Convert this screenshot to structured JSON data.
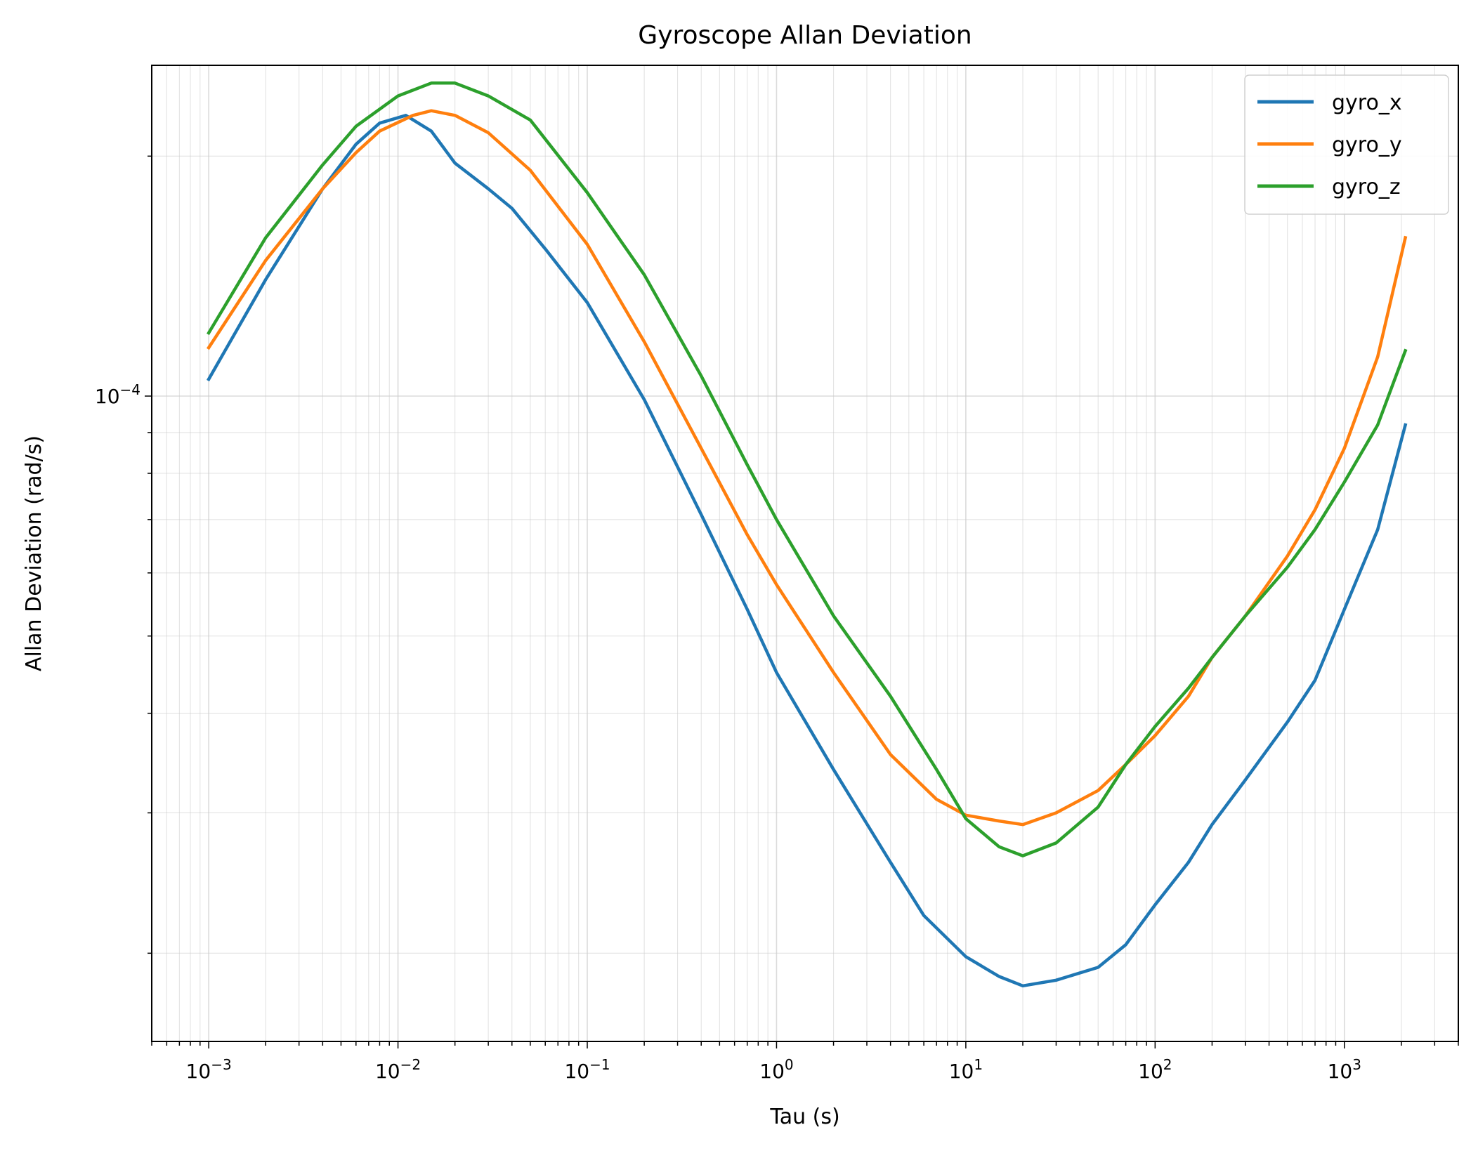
{
  "chart_data": {
    "type": "line",
    "title": "Gyroscope Allan Deviation",
    "xlabel": "Tau (s)",
    "ylabel": "Allan Deviation (rad/s)",
    "xscale": "log",
    "yscale": "log",
    "xlim": [
      0.0005,
      4000
    ],
    "ylim": [
      1.55e-05,
      0.00026
    ],
    "grid": "both",
    "legend_position": "top-right",
    "x_ticks": [
      {
        "value": 0.001,
        "base": "10",
        "exp": "−3"
      },
      {
        "value": 0.01,
        "base": "10",
        "exp": "−2"
      },
      {
        "value": 0.1,
        "base": "10",
        "exp": "−1"
      },
      {
        "value": 1,
        "base": "10",
        "exp": "0"
      },
      {
        "value": 10,
        "base": "10",
        "exp": "1"
      },
      {
        "value": 100,
        "base": "10",
        "exp": "2"
      },
      {
        "value": 1000,
        "base": "10",
        "exp": "3"
      }
    ],
    "y_ticks": [
      {
        "value": 0.0001,
        "base": "10",
        "exp": "−4"
      }
    ],
    "series": [
      {
        "name": "gyro_x",
        "color": "#1f77b4",
        "points": [
          [
            0.001,
            0.000105
          ],
          [
            0.002,
            0.00014
          ],
          [
            0.004,
            0.000182
          ],
          [
            0.006,
            0.000207
          ],
          [
            0.008,
            0.00022
          ],
          [
            0.011,
            0.000225
          ],
          [
            0.015,
            0.000215
          ],
          [
            0.02,
            0.000196
          ],
          [
            0.03,
            0.000182
          ],
          [
            0.04,
            0.000172
          ],
          [
            0.06,
            0.000153
          ],
          [
            0.1,
            0.000131
          ],
          [
            0.2,
            9.9e-05
          ],
          [
            0.4,
            7.1e-05
          ],
          [
            0.7,
            5.4e-05
          ],
          [
            1,
            4.5e-05
          ],
          [
            2,
            3.4e-05
          ],
          [
            4,
            2.6e-05
          ],
          [
            6,
            2.23e-05
          ],
          [
            10,
            1.98e-05
          ],
          [
            15,
            1.87e-05
          ],
          [
            20,
            1.82e-05
          ],
          [
            30,
            1.85e-05
          ],
          [
            50,
            1.92e-05
          ],
          [
            70,
            2.05e-05
          ],
          [
            100,
            2.3e-05
          ],
          [
            150,
            2.6e-05
          ],
          [
            200,
            2.9e-05
          ],
          [
            300,
            3.3e-05
          ],
          [
            500,
            3.9e-05
          ],
          [
            700,
            4.4e-05
          ],
          [
            1000,
            5.4e-05
          ],
          [
            1500,
            6.8e-05
          ],
          [
            2100,
            9.2e-05
          ]
        ]
      },
      {
        "name": "gyro_y",
        "color": "#ff7f0e",
        "points": [
          [
            0.001,
            0.000115
          ],
          [
            0.002,
            0.000148
          ],
          [
            0.004,
            0.000182
          ],
          [
            0.006,
            0.000202
          ],
          [
            0.008,
            0.000215
          ],
          [
            0.012,
            0.000225
          ],
          [
            0.015,
            0.000228
          ],
          [
            0.02,
            0.000225
          ],
          [
            0.03,
            0.000214
          ],
          [
            0.05,
            0.000192
          ],
          [
            0.1,
            0.000155
          ],
          [
            0.2,
            0.000117
          ],
          [
            0.4,
            8.6e-05
          ],
          [
            0.7,
            6.7e-05
          ],
          [
            1,
            5.8e-05
          ],
          [
            2,
            4.5e-05
          ],
          [
            4,
            3.55e-05
          ],
          [
            7,
            3.12e-05
          ],
          [
            10,
            2.98e-05
          ],
          [
            15,
            2.93e-05
          ],
          [
            20,
            2.9e-05
          ],
          [
            30,
            3e-05
          ],
          [
            50,
            3.2e-05
          ],
          [
            70,
            3.45e-05
          ],
          [
            100,
            3.75e-05
          ],
          [
            150,
            4.2e-05
          ],
          [
            200,
            4.7e-05
          ],
          [
            300,
            5.3e-05
          ],
          [
            500,
            6.3e-05
          ],
          [
            700,
            7.2e-05
          ],
          [
            1000,
            8.6e-05
          ],
          [
            1500,
            0.000112
          ],
          [
            2100,
            0.000158
          ]
        ]
      },
      {
        "name": "gyro_z",
        "color": "#2ca02c",
        "points": [
          [
            0.001,
            0.00012
          ],
          [
            0.002,
            0.000158
          ],
          [
            0.004,
            0.000195
          ],
          [
            0.006,
            0.000218
          ],
          [
            0.01,
            0.000238
          ],
          [
            0.015,
            0.000247
          ],
          [
            0.02,
            0.000247
          ],
          [
            0.03,
            0.000238
          ],
          [
            0.05,
            0.000222
          ],
          [
            0.1,
            0.00018
          ],
          [
            0.2,
            0.000142
          ],
          [
            0.4,
            0.000106
          ],
          [
            0.7,
            8.2e-05
          ],
          [
            1,
            7e-05
          ],
          [
            2,
            5.3e-05
          ],
          [
            4,
            4.2e-05
          ],
          [
            7,
            3.4e-05
          ],
          [
            10,
            2.95e-05
          ],
          [
            15,
            2.72e-05
          ],
          [
            20,
            2.65e-05
          ],
          [
            30,
            2.75e-05
          ],
          [
            50,
            3.05e-05
          ],
          [
            70,
            3.45e-05
          ],
          [
            100,
            3.85e-05
          ],
          [
            150,
            4.3e-05
          ],
          [
            200,
            4.7e-05
          ],
          [
            300,
            5.3e-05
          ],
          [
            500,
            6.1e-05
          ],
          [
            700,
            6.8e-05
          ],
          [
            1000,
            7.8e-05
          ],
          [
            1500,
            9.2e-05
          ],
          [
            2100,
            0.000114
          ]
        ]
      }
    ]
  }
}
